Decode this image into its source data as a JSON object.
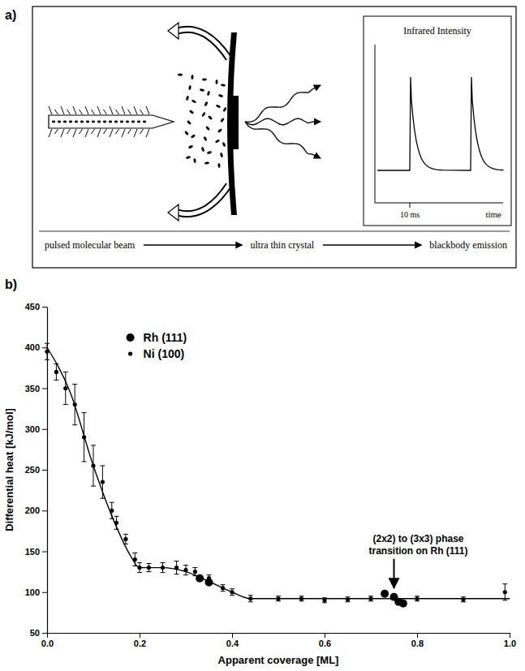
{
  "diagram": {
    "panel_label": "a)",
    "steps": [
      "pulsed molecular beam",
      "ultra thin crystal",
      "blackbody emission"
    ],
    "inset": {
      "title": "Infrared Intensity",
      "x_label": "time",
      "scale_label": "10 ms"
    }
  },
  "chart_data": {
    "type": "scatter",
    "panel_label": "b)",
    "xlabel": "Apparent coverage [ML]",
    "ylabel": "Differential heat [kJ/mol]",
    "xlim": [
      0,
      1
    ],
    "ylim": [
      50,
      450
    ],
    "xticks": [
      {
        "value": 0,
        "label": "0.0"
      },
      0.2,
      0.4,
      0.6,
      0.8,
      {
        "value": 1,
        "label": "1.0"
      }
    ],
    "yticks": [
      50,
      100,
      150,
      200,
      250,
      300,
      350,
      400,
      450
    ],
    "grid": false,
    "legend": "top",
    "annotation": {
      "text": [
        "(2x2) to (3x3) phase",
        "transition on Rh (111)"
      ],
      "x": 0.75,
      "y": 103
    },
    "series": [
      {
        "name": "Rh (111)",
        "color": "#000000",
        "marker": "circle",
        "x": [
          0.33,
          0.35,
          0.73,
          0.75,
          0.76,
          0.77
        ],
        "values": [
          117,
          112,
          98,
          94,
          88,
          86
        ]
      },
      {
        "name": "Ni (100)",
        "color": "#000000",
        "marker": "dot",
        "x": [
          0.0,
          0.02,
          0.04,
          0.06,
          0.08,
          0.1,
          0.12,
          0.14,
          0.15,
          0.17,
          0.19,
          0.2,
          0.22,
          0.25,
          0.28,
          0.3,
          0.32,
          0.35,
          0.38,
          0.4,
          0.44,
          0.5,
          0.55,
          0.6,
          0.65,
          0.7,
          0.8,
          0.9,
          0.99
        ],
        "values": [
          395,
          370,
          350,
          330,
          290,
          255,
          235,
          200,
          185,
          165,
          140,
          130,
          130,
          130,
          130,
          127,
          125,
          117,
          105,
          100,
          92,
          92,
          92,
          90,
          91,
          92,
          92,
          91,
          100
        ],
        "errors": [
          10,
          10,
          20,
          25,
          30,
          25,
          20,
          10,
          8,
          6,
          8,
          6,
          5,
          6,
          8,
          6,
          5,
          4,
          4,
          4,
          4,
          3,
          3,
          3,
          3,
          3,
          3,
          3,
          10
        ]
      },
      {
        "type": "line",
        "color": "#000000",
        "line_style": "solid",
        "x": [
          0,
          0.05,
          0.1,
          0.15,
          0.18,
          0.2,
          0.25,
          0.3,
          0.35,
          0.4,
          0.44,
          0.5,
          0.6,
          0.7,
          0.8,
          0.9,
          1.0
        ],
        "values": [
          400,
          345,
          255,
          180,
          145,
          130,
          130,
          125,
          113,
          100,
          92,
          92,
          92,
          92,
          92,
          92,
          92
        ]
      }
    ]
  }
}
